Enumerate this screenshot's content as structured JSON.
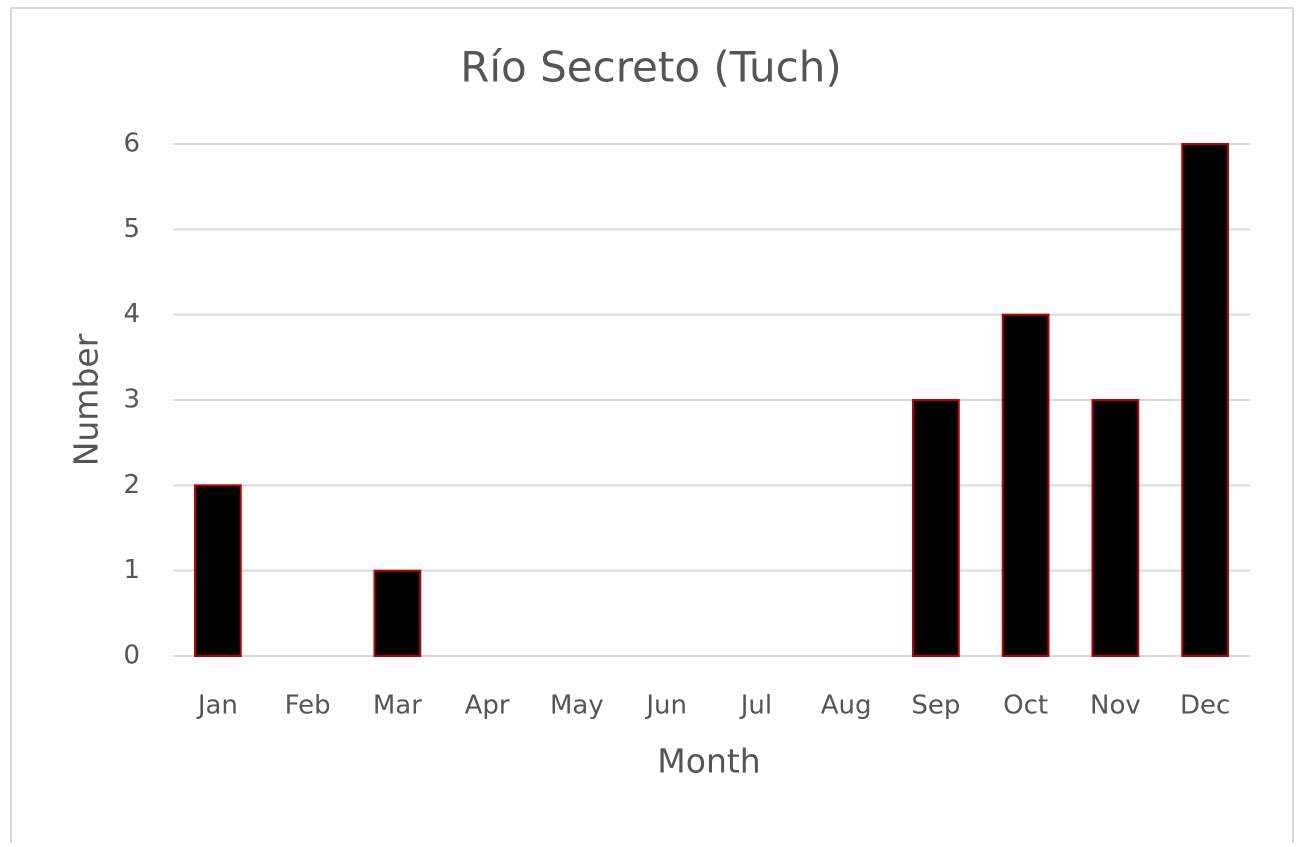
{
  "chart_data": {
    "type": "bar",
    "title": "Río Secreto (Tuch)",
    "x_label": "Month",
    "y_label": "Number",
    "categories": [
      "Jan",
      "Feb",
      "Mar",
      "Apr",
      "May",
      "Jun",
      "Jul",
      "Aug",
      "Sep",
      "Oct",
      "Nov",
      "Dec"
    ],
    "values": [
      2,
      0,
      1,
      0,
      0,
      0,
      0,
      0,
      3,
      4,
      3,
      6
    ],
    "color": "#000000",
    "edge_color": "#c00000",
    "ylim": [
      0,
      6
    ],
    "yticks": [
      0,
      1,
      2,
      3,
      4,
      5,
      6
    ],
    "grid": true
  }
}
